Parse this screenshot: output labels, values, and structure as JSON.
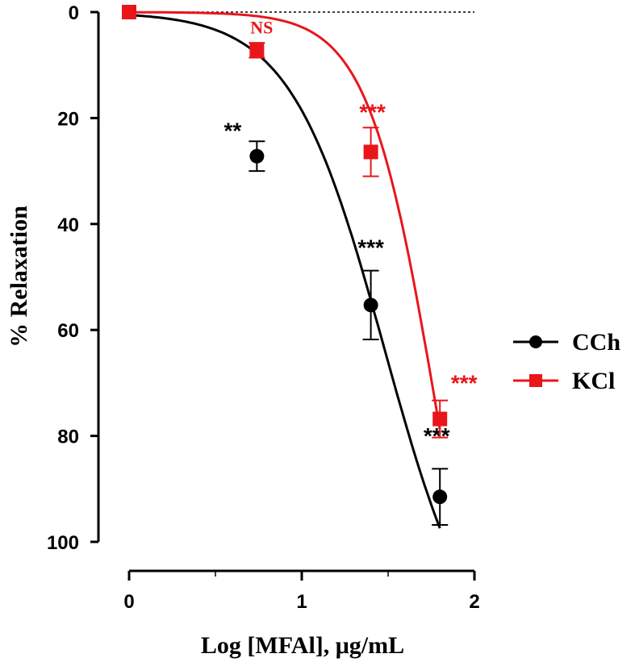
{
  "chart_data": {
    "type": "line",
    "xlabel": "Log [MFAl], μg/mL",
    "ylabel": "% Relaxation",
    "xlim": [
      0,
      2
    ],
    "ylim": [
      0,
      100
    ],
    "y_inverted": true,
    "xticks": [
      0,
      1,
      2
    ],
    "xtick_labels": [
      "0",
      "1",
      "2"
    ],
    "x_minor_step": 0.5,
    "yticks": [
      0,
      20,
      40,
      60,
      80,
      100
    ],
    "ytick_labels": [
      "0",
      "20",
      "40",
      "60",
      "80",
      "100"
    ],
    "reference_line_y": 0,
    "grid": false,
    "legend_position": "right",
    "series": [
      {
        "name": "CCh",
        "color": "#000000",
        "marker": "circle",
        "x": [
          0.74,
          1.4,
          1.8
        ],
        "y": [
          27.2,
          55.3,
          91.5
        ],
        "error": [
          2.8,
          6.5,
          5.3
        ],
        "fit_curve": {
          "top": 0,
          "bottom": 127.4,
          "log_ec50": 1.48,
          "hill": 1.6
        },
        "significance": [
          "**",
          "***",
          "***"
        ]
      },
      {
        "name": "KCl",
        "color": "#e8161b",
        "marker": "square",
        "x": [
          0,
          0.74,
          1.4,
          1.8
        ],
        "y": [
          0,
          7.2,
          26.4,
          76.8
        ],
        "error": [
          0,
          1.4,
          4.6,
          3.5
        ],
        "fit_curve": {
          "top": 0,
          "bottom": 150,
          "log_ec50": 1.78,
          "hill": 2.2
        },
        "significance": [
          "",
          "NS",
          "***",
          "***"
        ]
      }
    ]
  }
}
